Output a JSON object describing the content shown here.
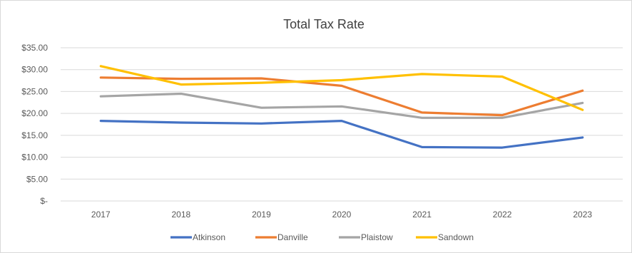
{
  "chart_data": {
    "type": "line",
    "title": "Total Tax Rate",
    "xlabel": "",
    "ylabel": "",
    "categories": [
      "2017",
      "2018",
      "2019",
      "2020",
      "2021",
      "2022",
      "2023"
    ],
    "y_tick_labels": [
      "$-",
      "$5.00",
      "$10.00",
      "$15.00",
      "$20.00",
      "$25.00",
      "$30.00",
      "$35.00"
    ],
    "ylim": [
      0,
      35
    ],
    "grid": true,
    "legend_position": "bottom",
    "series": [
      {
        "name": "Atkinson",
        "color": "#4472c4",
        "values": [
          18.3,
          17.9,
          17.7,
          18.3,
          12.3,
          12.2,
          14.5
        ]
      },
      {
        "name": "Danville",
        "color": "#ed7d31",
        "values": [
          28.2,
          27.9,
          28.0,
          26.3,
          20.2,
          19.6,
          25.2
        ]
      },
      {
        "name": "Plaistow",
        "color": "#a5a5a5",
        "values": [
          23.9,
          24.5,
          21.3,
          21.6,
          19.0,
          19.0,
          22.4
        ]
      },
      {
        "name": "Sandown",
        "color": "#ffc000",
        "values": [
          30.8,
          26.6,
          27.0,
          27.6,
          29.0,
          28.4,
          20.8
        ]
      }
    ]
  }
}
